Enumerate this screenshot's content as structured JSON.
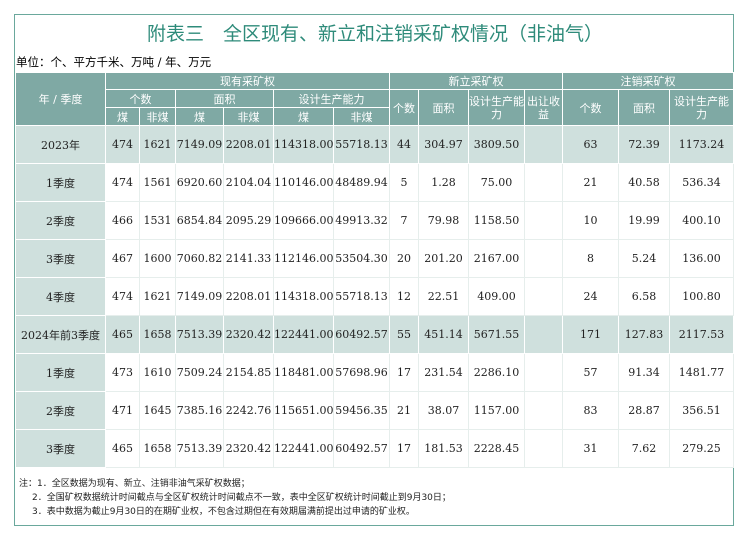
{
  "title": "附表三　全区现有、新立和注销采矿权情况（非油气）",
  "unit": "单位：个、平方千米、万吨 / 年、万元",
  "header": {
    "period": "年 / 季度",
    "groups": [
      "现有采矿权",
      "新立采矿权",
      "注销采矿权"
    ],
    "existing_sub": [
      "个数",
      "面积",
      "设计生产能力"
    ],
    "coal": "煤",
    "noncoal": "非煤",
    "new_cols": [
      "个数",
      "面积",
      "设计生产能力",
      "出让收益"
    ],
    "cancel_cols": [
      "个数",
      "面积",
      "设计生产能力"
    ]
  },
  "rows": [
    {
      "label": "2023年",
      "type": "annual",
      "v": [
        "474",
        "1621",
        "7149.09",
        "2208.01",
        "114318.00",
        "55718.13",
        "44",
        "304.97",
        "3809.50",
        "",
        "63",
        "72.39",
        "1173.24"
      ]
    },
    {
      "label": "1季度",
      "type": "quarter",
      "v": [
        "474",
        "1561",
        "6920.60",
        "2104.04",
        "110146.00",
        "48489.94",
        "5",
        "1.28",
        "75.00",
        "",
        "21",
        "40.58",
        "536.34"
      ]
    },
    {
      "label": "2季度",
      "type": "quarter",
      "v": [
        "466",
        "1531",
        "6854.84",
        "2095.29",
        "109666.00",
        "49913.32",
        "7",
        "79.98",
        "1158.50",
        "",
        "10",
        "19.99",
        "400.10"
      ]
    },
    {
      "label": "3季度",
      "type": "quarter",
      "v": [
        "467",
        "1600",
        "7060.82",
        "2141.33",
        "112146.00",
        "53504.30",
        "20",
        "201.20",
        "2167.00",
        "",
        "8",
        "5.24",
        "136.00"
      ]
    },
    {
      "label": "4季度",
      "type": "quarter",
      "v": [
        "474",
        "1621",
        "7149.09",
        "2208.01",
        "114318.00",
        "55718.13",
        "12",
        "22.51",
        "409.00",
        "",
        "24",
        "6.58",
        "100.80"
      ]
    },
    {
      "label": "2024年前3季度",
      "type": "annual",
      "v": [
        "465",
        "1658",
        "7513.39",
        "2320.42",
        "122441.00",
        "60492.57",
        "55",
        "451.14",
        "5671.55",
        "",
        "171",
        "127.83",
        "2117.53"
      ]
    },
    {
      "label": "1季度",
      "type": "quarter",
      "v": [
        "473",
        "1610",
        "7509.24",
        "2154.85",
        "118481.00",
        "57698.96",
        "17",
        "231.54",
        "2286.10",
        "",
        "57",
        "91.34",
        "1481.77"
      ]
    },
    {
      "label": "2季度",
      "type": "quarter",
      "v": [
        "471",
        "1645",
        "7385.16",
        "2242.76",
        "115651.00",
        "59456.35",
        "21",
        "38.07",
        "1157.00",
        "",
        "83",
        "28.87",
        "356.51"
      ]
    },
    {
      "label": "3季度",
      "type": "quarter",
      "v": [
        "465",
        "1658",
        "7513.39",
        "2320.42",
        "122441.00",
        "60492.57",
        "17",
        "181.53",
        "2228.45",
        "",
        "31",
        "7.62",
        "279.25"
      ]
    }
  ],
  "notes": [
    "注：1．全区数据为现有、新立、注销非油气采矿权数据；",
    "2．全国矿权数据统计时间截点与全区矿权统计时间截点不一致，表中全区矿权统计时间截止到9月30日；",
    "3．表中数据为截止9月30日的在期矿业权，不包含过期但在有效期届满前提出过申请的矿业权。"
  ]
}
